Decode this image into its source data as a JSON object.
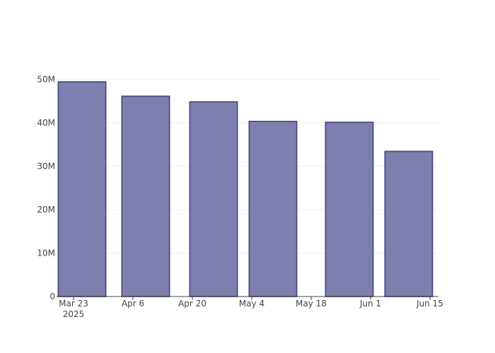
{
  "chart_data": {
    "type": "bar",
    "x": [
      "2025-03-25",
      "2025-04-09",
      "2025-04-25",
      "2025-05-09",
      "2025-05-27",
      "2025-06-10"
    ],
    "values": [
      49400000,
      46100000,
      44800000,
      40300000,
      40100000,
      33400000
    ],
    "color": "#7f7faf",
    "edge_color": "#4b4a85",
    "bar_width_days": 11.2,
    "xlim": [
      "2025-03-19",
      "2025-06-17"
    ],
    "xticks": [
      {
        "value": "2025-03-23",
        "label": "Mar 23\n2025"
      },
      {
        "value": "2025-04-06",
        "label": "Apr 6"
      },
      {
        "value": "2025-04-20",
        "label": "Apr 20"
      },
      {
        "value": "2025-05-04",
        "label": "May 4"
      },
      {
        "value": "2025-05-18",
        "label": "May 18"
      },
      {
        "value": "2025-06-01",
        "label": "Jun 1"
      },
      {
        "value": "2025-06-15",
        "label": "Jun 15"
      }
    ],
    "ylim": [
      0,
      52000000
    ],
    "yticks": [
      {
        "value": 0,
        "label": "0"
      },
      {
        "value": 10000000,
        "label": "10M"
      },
      {
        "value": 20000000,
        "label": "20M"
      },
      {
        "value": 30000000,
        "label": "30M"
      },
      {
        "value": 40000000,
        "label": "40M"
      },
      {
        "value": 50000000,
        "label": "50M"
      }
    ],
    "grid": true
  }
}
